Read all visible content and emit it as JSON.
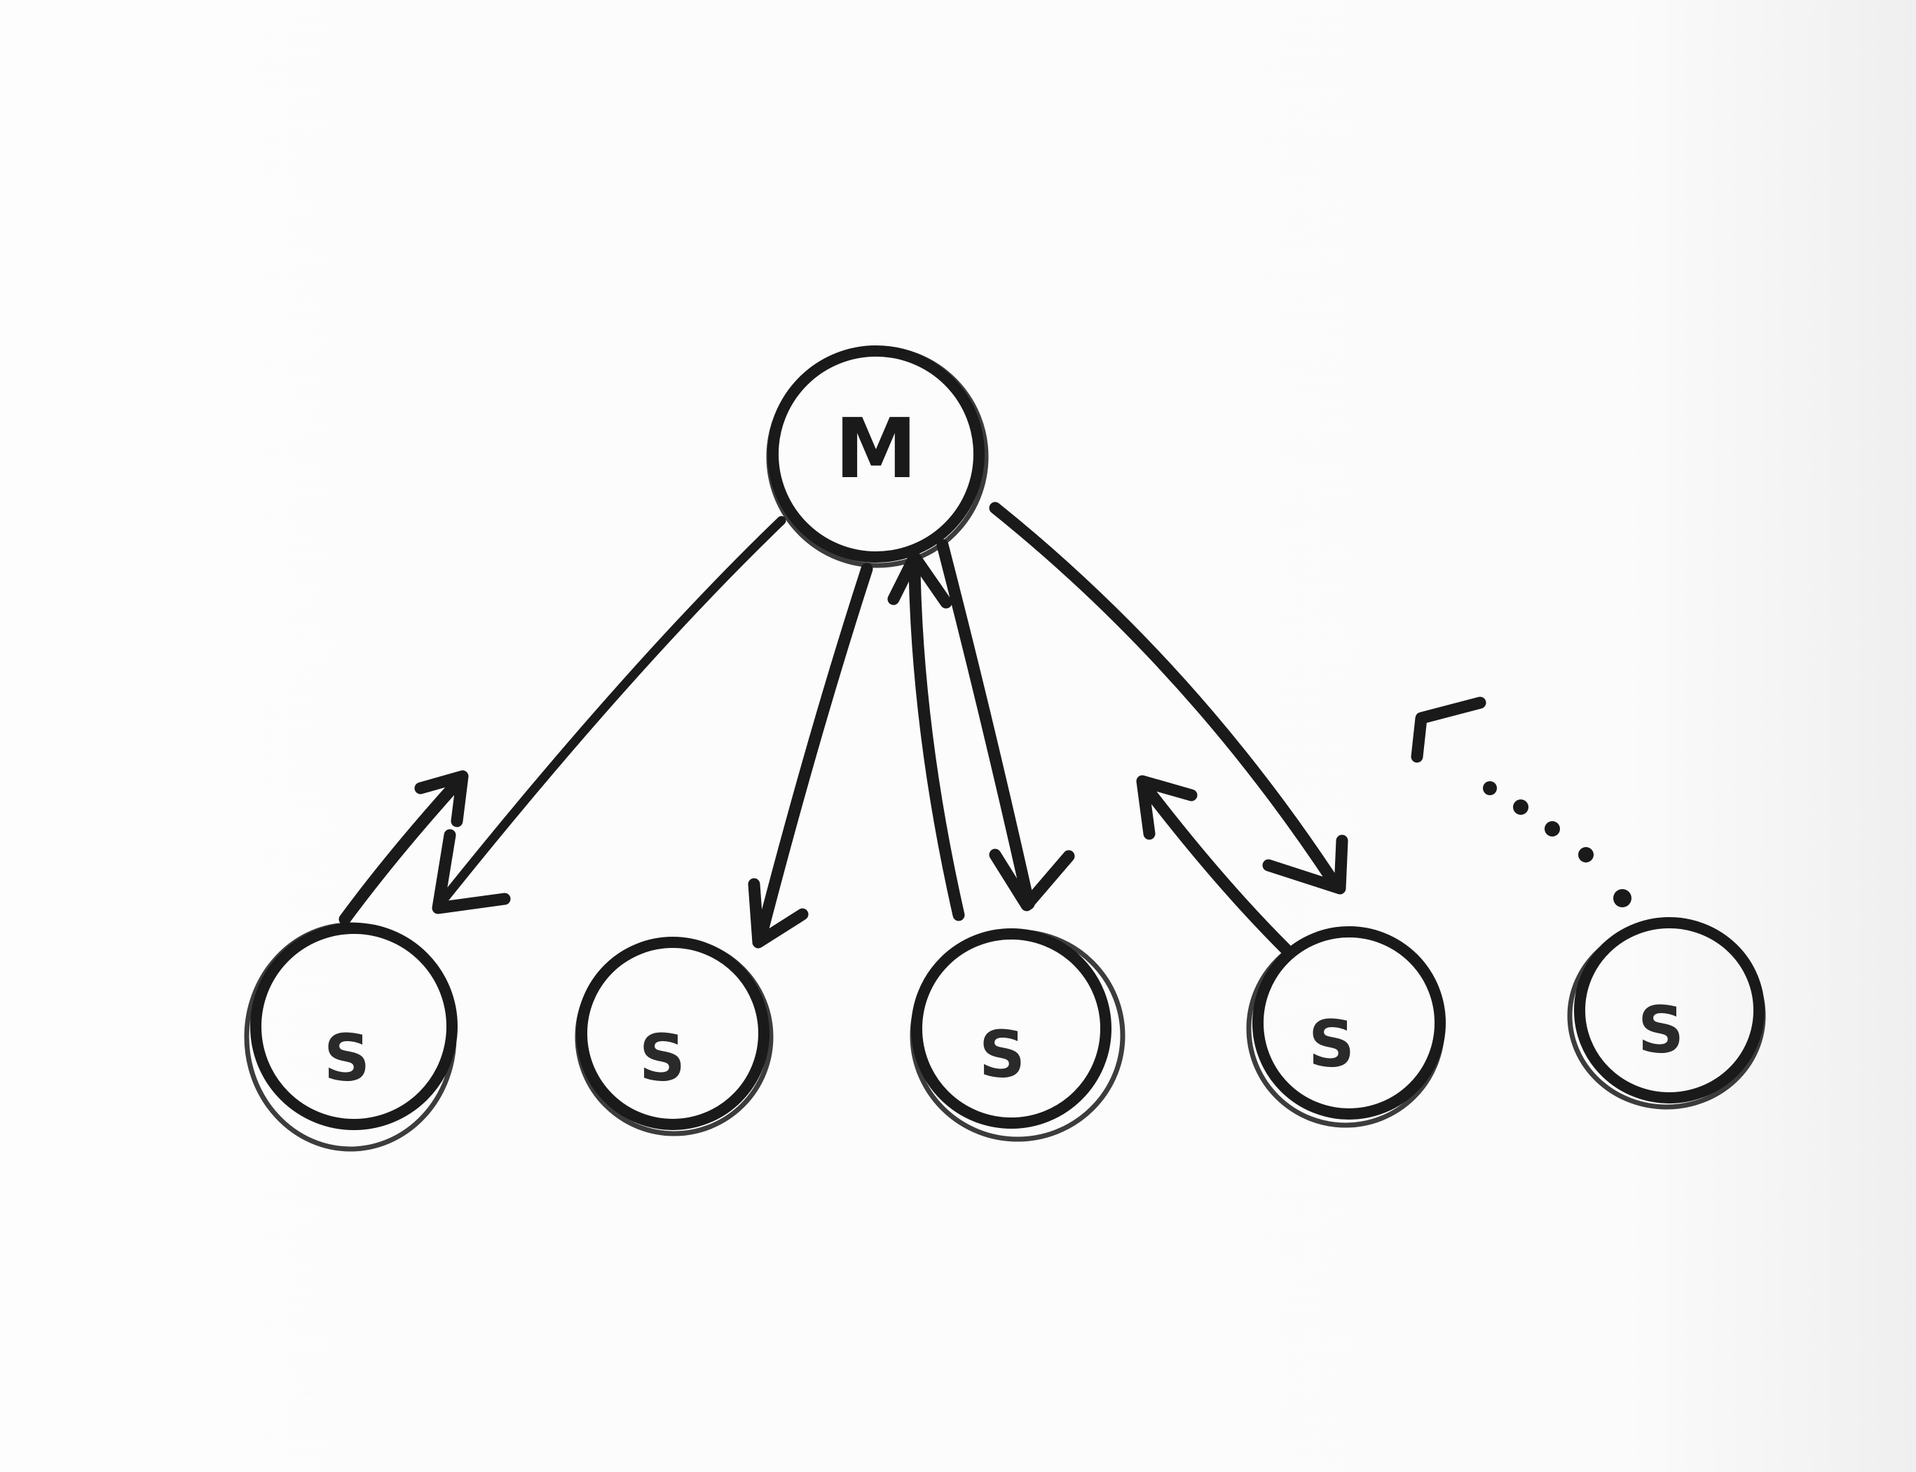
{
  "diagram": {
    "master": {
      "id": "master",
      "label": "M"
    },
    "slaves": [
      {
        "id": "slave-1",
        "label": "S"
      },
      {
        "id": "slave-2",
        "label": "S"
      },
      {
        "id": "slave-3",
        "label": "S"
      },
      {
        "id": "slave-4",
        "label": "S"
      },
      {
        "id": "slave-5",
        "label": "S"
      }
    ],
    "edges": [
      {
        "id": "master-to-slave-1",
        "from": "master",
        "to": "slave-1",
        "style": "solid",
        "arrow": "end"
      },
      {
        "id": "slave-1-to-master",
        "from": "slave-1",
        "to": "master",
        "style": "solid",
        "arrow": "end",
        "note": "short"
      },
      {
        "id": "master-to-slave-2",
        "from": "master",
        "to": "slave-2",
        "style": "solid",
        "arrow": "end"
      },
      {
        "id": "master-to-slave-3",
        "from": "master",
        "to": "slave-3",
        "style": "solid",
        "arrow": "end"
      },
      {
        "id": "slave-3-to-master",
        "from": "slave-3",
        "to": "master",
        "style": "solid",
        "arrow": "end"
      },
      {
        "id": "master-to-slave-4",
        "from": "master",
        "to": "slave-4",
        "style": "solid",
        "arrow": "end"
      },
      {
        "id": "slave-4-to-master",
        "from": "slave-4",
        "to": "master",
        "style": "solid",
        "arrow": "end",
        "note": "short"
      },
      {
        "id": "slave-5-to-master",
        "from": "slave-5",
        "to": "master",
        "style": "dotted",
        "arrow": "end",
        "note": "short"
      }
    ],
    "colors": {
      "ink": "#1a1a1a",
      "paper": "#fdfdfd"
    }
  }
}
